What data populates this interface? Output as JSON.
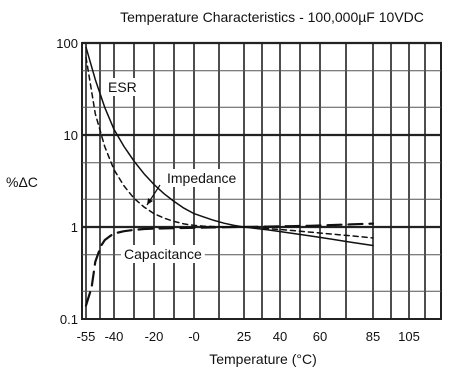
{
  "chart_data": {
    "type": "line",
    "title": "Temperature Characteristics - 100,000µF 10VDC",
    "xlabel": "Temperature (°C)",
    "ylabel": "%ΔC",
    "y_scale": "log",
    "ylim": [
      0.1,
      100
    ],
    "y_ticks": [
      {
        "value": 100,
        "label": "100"
      },
      {
        "value": 10,
        "label": "10"
      },
      {
        "value": 1,
        "label": "1"
      },
      {
        "value": 0.1,
        "label": "0.1"
      }
    ],
    "x_ticks": [
      {
        "value": -55,
        "label": "-55"
      },
      {
        "value": -40,
        "label": "-40"
      },
      {
        "value": -20,
        "label": "-20"
      },
      {
        "value": 0,
        "label": "-0"
      },
      {
        "value": 25,
        "label": "25"
      },
      {
        "value": 40,
        "label": "40"
      },
      {
        "value": 60,
        "label": "60"
      },
      {
        "value": 85,
        "label": "85"
      },
      {
        "value": 105,
        "label": "105"
      }
    ],
    "grid": true,
    "series": [
      {
        "name": "ESR",
        "style": "solid",
        "x": [
          -55,
          -50,
          -45,
          -40,
          -35,
          -30,
          -25,
          -20,
          -15,
          -10,
          -5,
          0,
          5,
          10,
          15,
          20,
          25,
          35,
          45,
          55,
          65,
          75,
          85
        ],
        "y": [
          90,
          40,
          20,
          11.5,
          7.5,
          5.2,
          3.8,
          2.9,
          2.3,
          1.9,
          1.6,
          1.4,
          1.28,
          1.18,
          1.1,
          1.04,
          1.0,
          0.93,
          0.86,
          0.8,
          0.74,
          0.68,
          0.63
        ]
      },
      {
        "name": "Impedance",
        "style": "dashed",
        "x": [
          -55,
          -50,
          -45,
          -40,
          -35,
          -30,
          -25,
          -20,
          -15,
          -10,
          -5,
          0,
          5,
          10,
          15,
          20,
          25,
          35,
          45,
          55,
          65,
          75,
          85
        ],
        "y": [
          70,
          17,
          7.5,
          4.2,
          2.8,
          2.05,
          1.65,
          1.4,
          1.25,
          1.15,
          1.08,
          1.04,
          1.02,
          1.01,
          1.0,
          1.0,
          1.0,
          0.96,
          0.92,
          0.88,
          0.84,
          0.8,
          0.76
        ]
      },
      {
        "name": "Capacitance",
        "style": "long-dash",
        "x": [
          -55,
          -52,
          -50,
          -47,
          -45,
          -42,
          -40,
          -35,
          -30,
          -25,
          -20,
          -10,
          0,
          10,
          20,
          25,
          35,
          45,
          55,
          65,
          75,
          85
        ],
        "y": [
          0.14,
          0.22,
          0.42,
          0.62,
          0.72,
          0.8,
          0.85,
          0.9,
          0.93,
          0.95,
          0.96,
          0.97,
          0.98,
          0.99,
          1.0,
          1.0,
          1.01,
          1.02,
          1.03,
          1.05,
          1.07,
          1.09
        ]
      }
    ],
    "annotations": [
      {
        "text": "ESR",
        "series": "ESR"
      },
      {
        "text": "Impedance",
        "series": "Impedance"
      },
      {
        "text": "Capacitance",
        "series": "Capacitance"
      }
    ]
  }
}
